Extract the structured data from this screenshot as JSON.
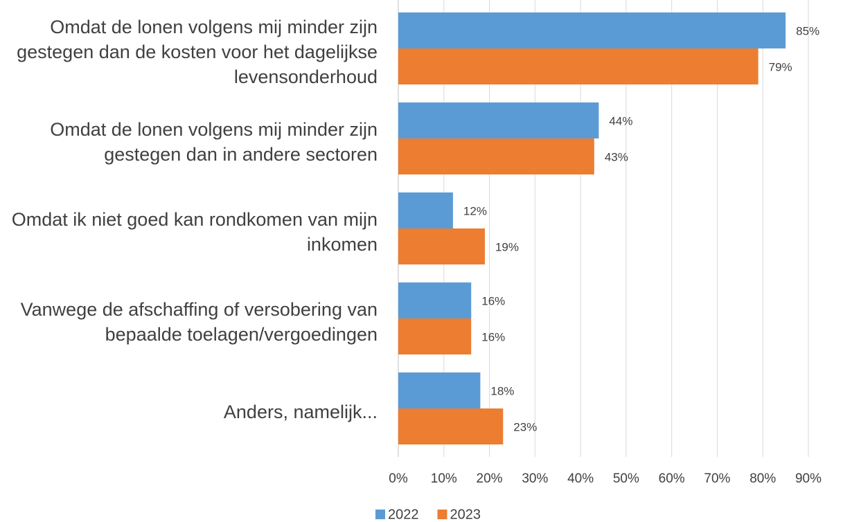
{
  "chart_data": {
    "type": "hbar",
    "categories": [
      "Omdat de lonen volgens mij minder zijn gestegen dan de kosten voor het dagelijkse levensonderhoud",
      "Omdat de lonen volgens mij minder zijn gestegen dan in andere sectoren",
      "Omdat ik niet goed kan rondkomen van mijn inkomen",
      "Vanwege de afschaffing of versobering van bepaalde toelagen/vergoedingen",
      "Anders, namelijk..."
    ],
    "series": [
      {
        "name": "2022",
        "color": "#5b9bd5",
        "values": [
          85,
          44,
          12,
          16,
          18
        ],
        "value_labels": [
          "85%",
          "44%",
          "12%",
          "16%",
          "18%"
        ]
      },
      {
        "name": "2023",
        "color": "#ed7d31",
        "values": [
          79,
          43,
          19,
          16,
          23
        ],
        "value_labels": [
          "79%",
          "43%",
          "19%",
          "16%",
          "23%"
        ]
      }
    ],
    "xlim": [
      0,
      90
    ],
    "xticks": [
      {
        "value": 0,
        "label": "0%"
      },
      {
        "value": 10,
        "label": "10%"
      },
      {
        "value": 20,
        "label": "20%"
      },
      {
        "value": 30,
        "label": "30%"
      },
      {
        "value": 40,
        "label": "40%"
      },
      {
        "value": 50,
        "label": "50%"
      },
      {
        "value": 60,
        "label": "60%"
      },
      {
        "value": 70,
        "label": "70%"
      },
      {
        "value": 80,
        "label": "80%"
      },
      {
        "value": 90,
        "label": "90%"
      }
    ],
    "grid": true,
    "legend": "bottom"
  }
}
